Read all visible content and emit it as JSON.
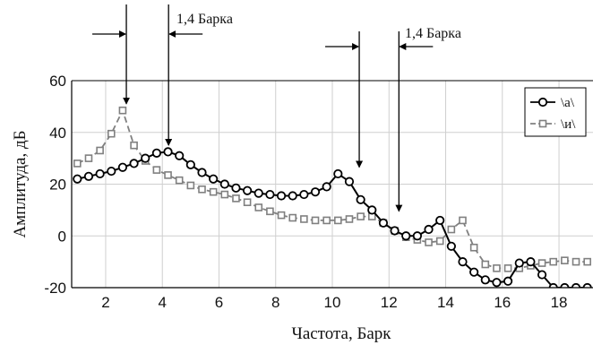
{
  "chart_data": {
    "type": "line",
    "xlabel": "Частота, Барк",
    "ylabel": "Амплитуда, дБ",
    "xlim": [
      0.8,
      19.2
    ],
    "ylim": [
      -20,
      60
    ],
    "xticks": [
      2,
      4,
      6,
      8,
      10,
      12,
      14,
      16,
      18
    ],
    "yticks": [
      -20,
      0,
      20,
      40,
      60
    ],
    "xtick_labels": [
      "2",
      "4",
      "6",
      "8",
      "10",
      "12",
      "14",
      "16",
      "18"
    ],
    "ytick_labels": [
      "-20",
      "0",
      "20",
      "40",
      "60"
    ],
    "grid": true,
    "legend_position": "top-right",
    "series": [
      {
        "name": "\\а\\",
        "color": "#000000",
        "line": "solid",
        "marker": "circle",
        "x": [
          1.0,
          1.4,
          1.8,
          2.2,
          2.6,
          3.0,
          3.4,
          3.8,
          4.2,
          4.6,
          5.0,
          5.4,
          5.8,
          6.2,
          6.6,
          7.0,
          7.4,
          7.8,
          8.2,
          8.6,
          9.0,
          9.4,
          9.8,
          10.2,
          10.6,
          11.0,
          11.4,
          11.8,
          12.2,
          12.6,
          13.0,
          13.4,
          13.8,
          14.2,
          14.6,
          15.0,
          15.4,
          15.8,
          16.2,
          16.6,
          17.0,
          17.4,
          17.8,
          18.2,
          18.6,
          19.0
        ],
        "y": [
          22,
          23,
          24,
          25,
          26.5,
          28,
          30,
          32,
          32.5,
          31,
          27.5,
          24.5,
          22,
          20,
          18.5,
          17.5,
          16.5,
          16,
          15.5,
          15.5,
          16,
          17,
          19,
          24,
          21,
          14,
          10,
          5,
          2,
          0,
          0,
          2.5,
          6,
          -4,
          -10,
          -14,
          -17,
          -18,
          -17.5,
          -10.5,
          -10,
          -15,
          -20,
          -20,
          -20,
          -20
        ]
      },
      {
        "name": "\\и\\",
        "color": "#808080",
        "line": "dashed",
        "marker": "square",
        "x": [
          1.0,
          1.4,
          1.8,
          2.2,
          2.6,
          3.0,
          3.4,
          3.8,
          4.2,
          4.6,
          5.0,
          5.4,
          5.8,
          6.2,
          6.6,
          7.0,
          7.4,
          7.8,
          8.2,
          8.6,
          9.0,
          9.4,
          9.8,
          10.2,
          10.6,
          11.0,
          11.4,
          11.8,
          12.2,
          12.6,
          13.0,
          13.4,
          13.8,
          14.2,
          14.6,
          15.0,
          15.4,
          15.8,
          16.2,
          16.6,
          17.0,
          17.4,
          17.8,
          18.2,
          18.6,
          19.0
        ],
        "y": [
          28,
          30,
          33,
          39.5,
          48.5,
          35,
          29,
          25.5,
          23.5,
          21.5,
          19.5,
          18,
          17,
          16,
          14.5,
          13,
          11,
          9.5,
          8,
          7,
          6.5,
          6,
          6,
          6,
          6.5,
          7.5,
          7.5,
          5,
          2,
          -0.5,
          -1.5,
          -2.5,
          -2,
          2.5,
          6,
          -4.5,
          -11,
          -12.5,
          -12.5,
          -12.5,
          -11.5,
          -10.5,
          -10,
          -9.5,
          -10,
          -10
        ]
      }
    ],
    "annotations": [
      {
        "label": "1,4 Барка"
      },
      {
        "label": "1,4 Барка"
      }
    ]
  }
}
